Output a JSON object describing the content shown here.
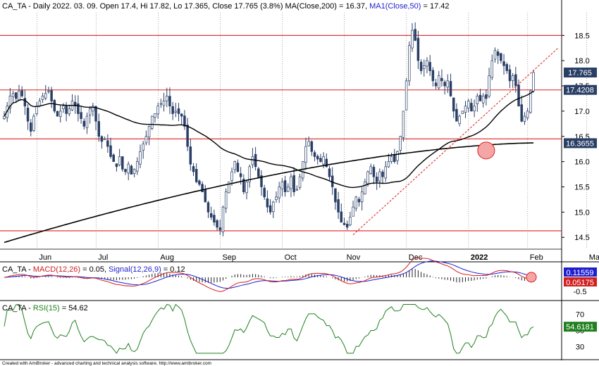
{
  "footer": "Created with AmiBroker - advanced charting and technical analysis software. http://www.amibroker.com",
  "price_panel": {
    "title_parts": [
      {
        "text": "CA_TA - Daily 2022. 03. 09. Open 17.4, Hi 17.82, Lo 17.365, Close 17.765 (3.8%) MA(Close,200) = 16.37, ",
        "color": "#000000"
      },
      {
        "text": "MA1(Close,50)",
        "color": "#1f1fd0"
      },
      {
        "text": " = 17.42",
        "color": "#000000"
      }
    ],
    "y_ticks": [
      "18.5",
      "18.0",
      "17.5",
      "17.0",
      "16.5",
      "16.0",
      "15.5",
      "15.0",
      "14.5"
    ],
    "x_labels": [
      {
        "text": "Jun",
        "bold": false
      },
      {
        "text": "Jul",
        "bold": false
      },
      {
        "text": "Aug",
        "bold": false
      },
      {
        "text": "Sep",
        "bold": false
      },
      {
        "text": "Oct",
        "bold": false
      },
      {
        "text": "Nov",
        "bold": false
      },
      {
        "text": "Dec",
        "bold": false
      },
      {
        "text": "2022",
        "bold": true
      },
      {
        "text": "Feb",
        "bold": false
      },
      {
        "text": "Mar",
        "bold": false
      }
    ],
    "badges": [
      {
        "text": "17.765",
        "value": 17.765
      },
      {
        "text": "17.4208",
        "value": 17.4208
      },
      {
        "text": "16.3655",
        "value": 16.3655
      }
    ],
    "hlines": [
      18.5,
      17.42,
      16.45,
      14.63
    ],
    "colors": {
      "candle": "#2a3f66",
      "hline": "#e02020",
      "ma": "#000000",
      "trend": "#e02020",
      "highlight": "#f4a6a6"
    }
  },
  "macd_panel": {
    "title_parts": [
      {
        "text": "CA_TA - ",
        "color": "#000000"
      },
      {
        "text": "MACD(12,26)",
        "color": "#d02020"
      },
      {
        "text": " = 0.05, ",
        "color": "#000000"
      },
      {
        "text": "Signal(12,26,9)",
        "color": "#1f1fd0"
      },
      {
        "text": " = 0.12",
        "color": "#000000"
      }
    ],
    "y_ticks": [
      "-0.5"
    ],
    "badges": [
      {
        "text": "0.11559",
        "color": "#1f1fd0",
        "value": 0.11559
      },
      {
        "text": "0.05175",
        "color": "#d02020",
        "value": 0.05175
      }
    ]
  },
  "rsi_panel": {
    "title_parts": [
      {
        "text": "CA_TA - ",
        "color": "#000000"
      },
      {
        "text": "RSI(15)",
        "color": "#208020"
      },
      {
        "text": " = 54.62",
        "color": "#000000"
      }
    ],
    "y_ticks": [
      "70",
      "50",
      "30"
    ],
    "badges": [
      {
        "text": "54.6181",
        "color": "#208020",
        "value": 54.6181
      }
    ]
  },
  "chart_data": {
    "type": "candlestick",
    "title": "CA_TA - Daily 2022. 03. 09. Open 17.4, Hi 17.82, Lo 17.365, Close 17.765 (3.8%) MA(Close,200) = 16.37, MA1(Close,50) = 17.42",
    "ylim": [
      14.35,
      18.95
    ],
    "last_bar": {
      "date": "2022-03-09",
      "open": 17.4,
      "high": 17.82,
      "low": 17.365,
      "close": 17.765
    },
    "x_month_labels": [
      "Jun",
      "Jul",
      "Aug",
      "Sep",
      "Oct",
      "Nov",
      "Dec",
      "2022",
      "Feb",
      "Mar"
    ],
    "x_month_start_bar": [
      12,
      32,
      53,
      74,
      95,
      116,
      137,
      158,
      178,
      198
    ],
    "closes": [
      16.9,
      17.1,
      17.3,
      17.35,
      17.25,
      17.4,
      17.3,
      17.1,
      16.8,
      16.6,
      16.9,
      17.1,
      17.2,
      17.3,
      17.35,
      17.4,
      17.2,
      17.0,
      16.9,
      17.0,
      17.1,
      16.95,
      17.05,
      17.2,
      17.1,
      16.95,
      16.85,
      16.7,
      16.9,
      17.05,
      17.1,
      16.8,
      16.5,
      16.4,
      16.45,
      16.3,
      16.1,
      16.0,
      15.9,
      16.1,
      15.85,
      15.8,
      15.95,
      15.75,
      15.85,
      16.0,
      16.2,
      16.35,
      16.5,
      16.7,
      16.9,
      16.95,
      17.1,
      17.15,
      17.2,
      17.3,
      17.1,
      16.95,
      17.0,
      16.95,
      16.9,
      16.7,
      16.3,
      15.95,
      15.8,
      15.6,
      15.55,
      15.4,
      15.2,
      15.0,
      14.9,
      14.8,
      14.7,
      14.65,
      15.1,
      15.4,
      15.6,
      15.8,
      16.0,
      15.8,
      15.7,
      15.4,
      15.6,
      15.9,
      16.1,
      15.9,
      15.7,
      15.5,
      15.3,
      15.1,
      15.0,
      15.2,
      15.3,
      15.5,
      15.6,
      15.4,
      15.5,
      15.7,
      15.4,
      15.45,
      15.7,
      16.0,
      16.3,
      16.4,
      16.2,
      16.1,
      16.05,
      16.0,
      16.1,
      15.9,
      15.7,
      15.5,
      15.2,
      15.0,
      14.8,
      14.75,
      14.7,
      14.9,
      15.1,
      15.3,
      15.2,
      15.4,
      15.6,
      15.8,
      15.9,
      15.7,
      15.6,
      15.8,
      15.7,
      15.9,
      16.0,
      16.1,
      16.0,
      16.2,
      16.5,
      17.0,
      17.6,
      18.3,
      18.6,
      18.4,
      18.0,
      17.8,
      17.9,
      18.0,
      17.8,
      17.6,
      17.5,
      17.7,
      17.6,
      17.5,
      17.6,
      17.3,
      17.0,
      16.8,
      16.9,
      17.0,
      17.1,
      17.2,
      17.0,
      17.1,
      17.3,
      17.2,
      17.3,
      17.25,
      17.7,
      18.0,
      18.2,
      18.1,
      18.0,
      17.9,
      17.8,
      17.6,
      17.7,
      17.5,
      17.1,
      16.8,
      16.9,
      17.0,
      17.4,
      17.765
    ],
    "series": [
      {
        "values_ref": "closes"
      },
      {
        "name": "MA1(Close,50)",
        "values": [
          17.42
        ]
      },
      {
        "name": "MA(Close,200)",
        "values": [
          16.37
        ]
      }
    ],
    "macd": {
      "macd": 0.05,
      "signal": 0.12
    },
    "rsi": {
      "period": 15,
      "value": 54.62,
      "ylim": [
        15,
        85
      ]
    }
  }
}
